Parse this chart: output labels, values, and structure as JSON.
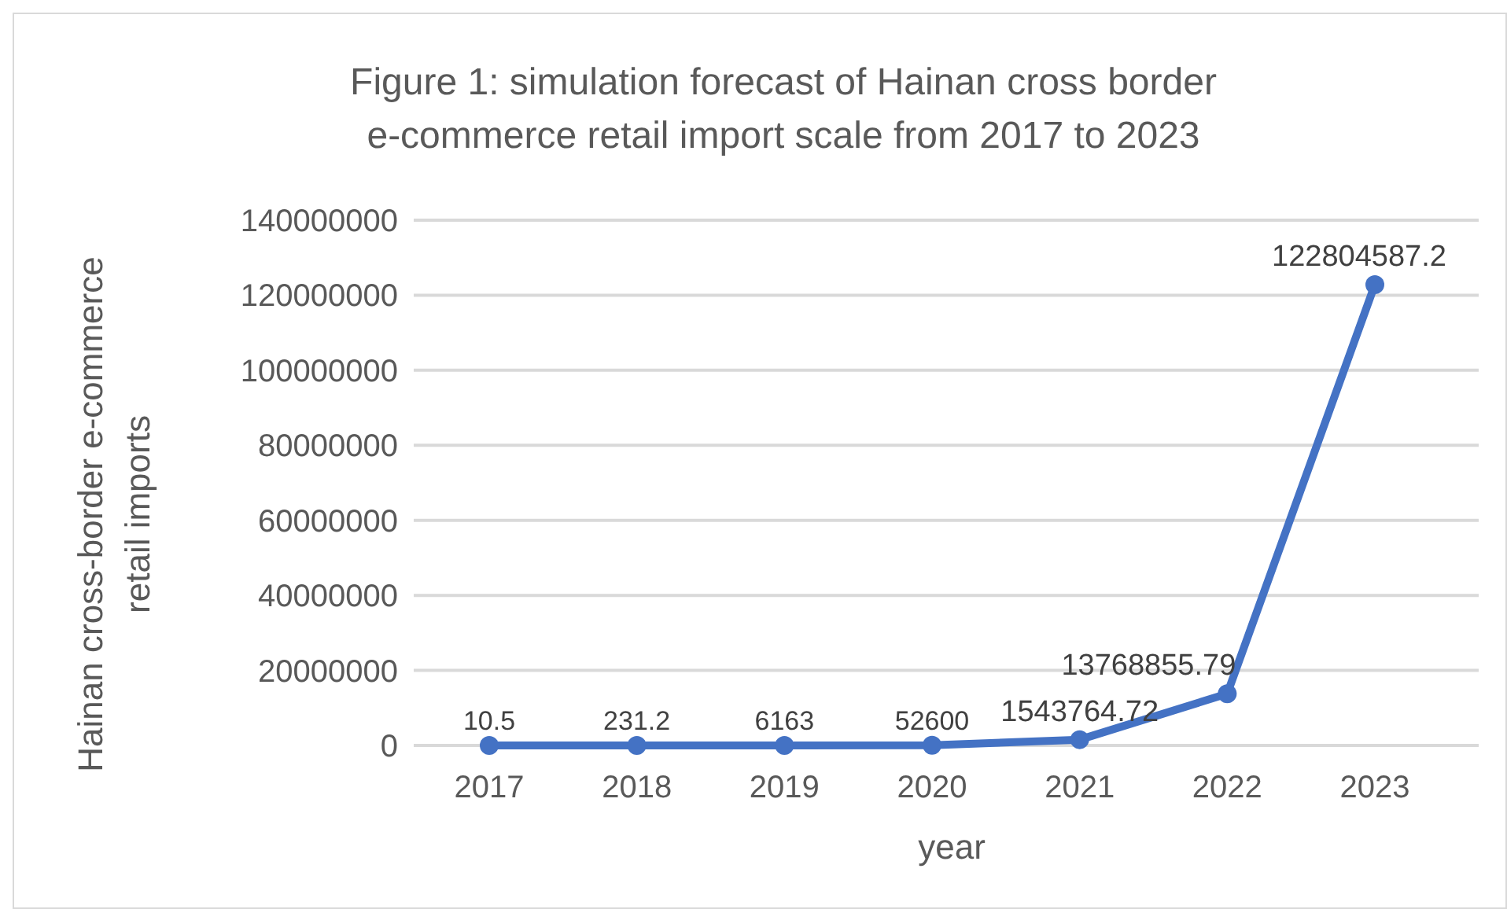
{
  "chart_data": {
    "type": "line",
    "title": "Figure 1: simulation forecast of Hainan cross border e-commerce retail import scale from 2017 to 2023",
    "xlabel": "year",
    "ylabel": "Hainan cross-border e-commerce retail imports",
    "categories": [
      "2017",
      "2018",
      "2019",
      "2020",
      "2021",
      "2022",
      "2023"
    ],
    "series": [
      {
        "color": "#4472c4",
        "values": [
          10.5,
          231.2,
          6163,
          52600,
          1543764.72,
          13768855.79,
          122804587.2
        ]
      }
    ],
    "ylim": [
      0,
      140000000
    ],
    "yticks": [
      0,
      20000000,
      40000000,
      60000000,
      80000000,
      100000000,
      120000000,
      140000000
    ],
    "grid": "y",
    "data_labels": true,
    "marker": "circle",
    "line_style": "solid"
  }
}
